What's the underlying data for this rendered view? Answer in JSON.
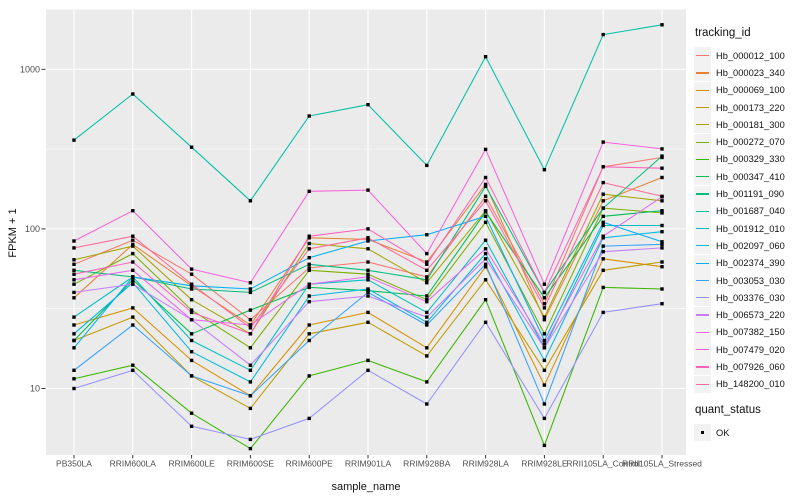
{
  "chart_data": {
    "type": "line",
    "title": "",
    "xlabel": "sample_name",
    "ylabel": "FPKM + 1",
    "y_scale": "log10",
    "ylim": [
      3,
      2300
    ],
    "grid": "on",
    "panel_bg": "#EBEBEB",
    "grid_color": "#FFFFFF",
    "tick_text_color": "#4D4D4D",
    "marker_color": "#000000",
    "marker_shape": "square",
    "y_ticks": [
      {
        "label": "10",
        "value": 10
      },
      {
        "label": "100",
        "value": 100
      },
      {
        "label": "1000",
        "value": 1000
      }
    ],
    "categories": [
      "PB350LA",
      "RRIM600LA",
      "RRIM600LE",
      "RRIM600SE",
      "RRIM600PE",
      "RRIM901LA",
      "RRIM928BA",
      "RRIM928LA",
      "RRIM928LE",
      "RRII105LA_Control",
      "RRII105LA_Stressed"
    ],
    "legend": {
      "title": "tracking_id",
      "position": "right"
    },
    "quant_status": {
      "title": "quant_status",
      "items": [
        {
          "label": "OK",
          "marker": "black-square"
        }
      ]
    },
    "series": [
      {
        "name": "Hb_000012_100",
        "color": "#F8766D",
        "values": [
          60,
          85,
          52,
          27,
          57,
          62,
          50,
          160,
          34,
          245,
          280
        ]
      },
      {
        "name": "Hb_000023_340",
        "color": "#EA8331",
        "values": [
          37,
          80,
          44,
          25,
          88,
          86,
          62,
          190,
          27,
          150,
          210
        ]
      },
      {
        "name": "Hb_000069_100",
        "color": "#D89000",
        "values": [
          25,
          32,
          15,
          9,
          25,
          30,
          18,
          58,
          10.5,
          65,
          58
        ]
      },
      {
        "name": "Hb_000173_220",
        "color": "#C09B00",
        "values": [
          20,
          28,
          12,
          7.5,
          22,
          26,
          16,
          48,
          13,
          55,
          62
        ]
      },
      {
        "name": "Hb_000181_300",
        "color": "#A3A500",
        "values": [
          64,
          78,
          36,
          22,
          81,
          75,
          46,
          130,
          28,
          165,
          150
        ]
      },
      {
        "name": "Hb_000272_070",
        "color": "#7CAE00",
        "values": [
          45,
          70,
          31,
          18,
          55,
          52,
          36,
          110,
          22,
          135,
          126
        ]
      },
      {
        "name": "Hb_000329_330",
        "color": "#39B600",
        "values": [
          11.5,
          14,
          7,
          4.2,
          12,
          15,
          11,
          36,
          4.4,
          43,
          42
        ]
      },
      {
        "name": "Hb_000347_410",
        "color": "#00BB4E",
        "values": [
          20,
          48,
          22,
          31,
          43,
          41,
          38,
          128,
          37,
          120,
          130
        ]
      },
      {
        "name": "Hb_001191_090",
        "color": "#00BF7D",
        "values": [
          55,
          50,
          42,
          40,
          60,
          55,
          48,
          185,
          40,
          135,
          286
        ]
      },
      {
        "name": "Hb_001687_040",
        "color": "#00C1A3",
        "values": [
          360,
          700,
          325,
          150,
          510,
          600,
          250,
          1200,
          235,
          1650,
          1900
        ]
      },
      {
        "name": "Hb_001912_010",
        "color": "#00BFC4",
        "values": [
          28,
          50,
          20,
          13,
          45,
          48,
          30,
          85,
          18,
          105,
          105
        ]
      },
      {
        "name": "Hb_002097_060",
        "color": "#00BAE0",
        "values": [
          22,
          46,
          17,
          11,
          38,
          42,
          26,
          70,
          15,
          88,
          96
        ]
      },
      {
        "name": "Hb_002374_390",
        "color": "#00B0F6",
        "values": [
          18,
          50,
          44,
          42,
          66,
          84,
          92,
          120,
          20,
          110,
          83
        ]
      },
      {
        "name": "Hb_003053_030",
        "color": "#35A2FF",
        "values": [
          13,
          25,
          12,
          9,
          20,
          40,
          25,
          60,
          8,
          78,
          80
        ]
      },
      {
        "name": "Hb_003376_030",
        "color": "#9590FF",
        "values": [
          10,
          13,
          5.8,
          4.8,
          6.5,
          13,
          8,
          26,
          6.5,
          30,
          34
        ]
      },
      {
        "name": "Hb_006573_220",
        "color": "#C77CFF",
        "values": [
          40,
          45,
          27,
          14,
          35,
          38,
          28,
          65,
          18,
          72,
          76
        ]
      },
      {
        "name": "Hb_007382_150",
        "color": "#E76BF3",
        "values": [
          48,
          55,
          27,
          25,
          45,
          50,
          35,
          75,
          19,
          90,
          159
        ]
      },
      {
        "name": "Hb_007479_020",
        "color": "#FA62DB",
        "values": [
          84,
          130,
          56,
          46,
          172,
          175,
          70,
          315,
          45,
          350,
          317
        ]
      },
      {
        "name": "Hb_007926_060",
        "color": "#FF62BC",
        "values": [
          52,
          62,
          30,
          22,
          90,
          100,
          60,
          210,
          40,
          245,
          240
        ]
      },
      {
        "name": "Hb_148200_010",
        "color": "#FF6A98",
        "values": [
          76,
          90,
          45,
          24,
          75,
          88,
          55,
          150,
          32,
          195,
          160
        ]
      }
    ]
  }
}
